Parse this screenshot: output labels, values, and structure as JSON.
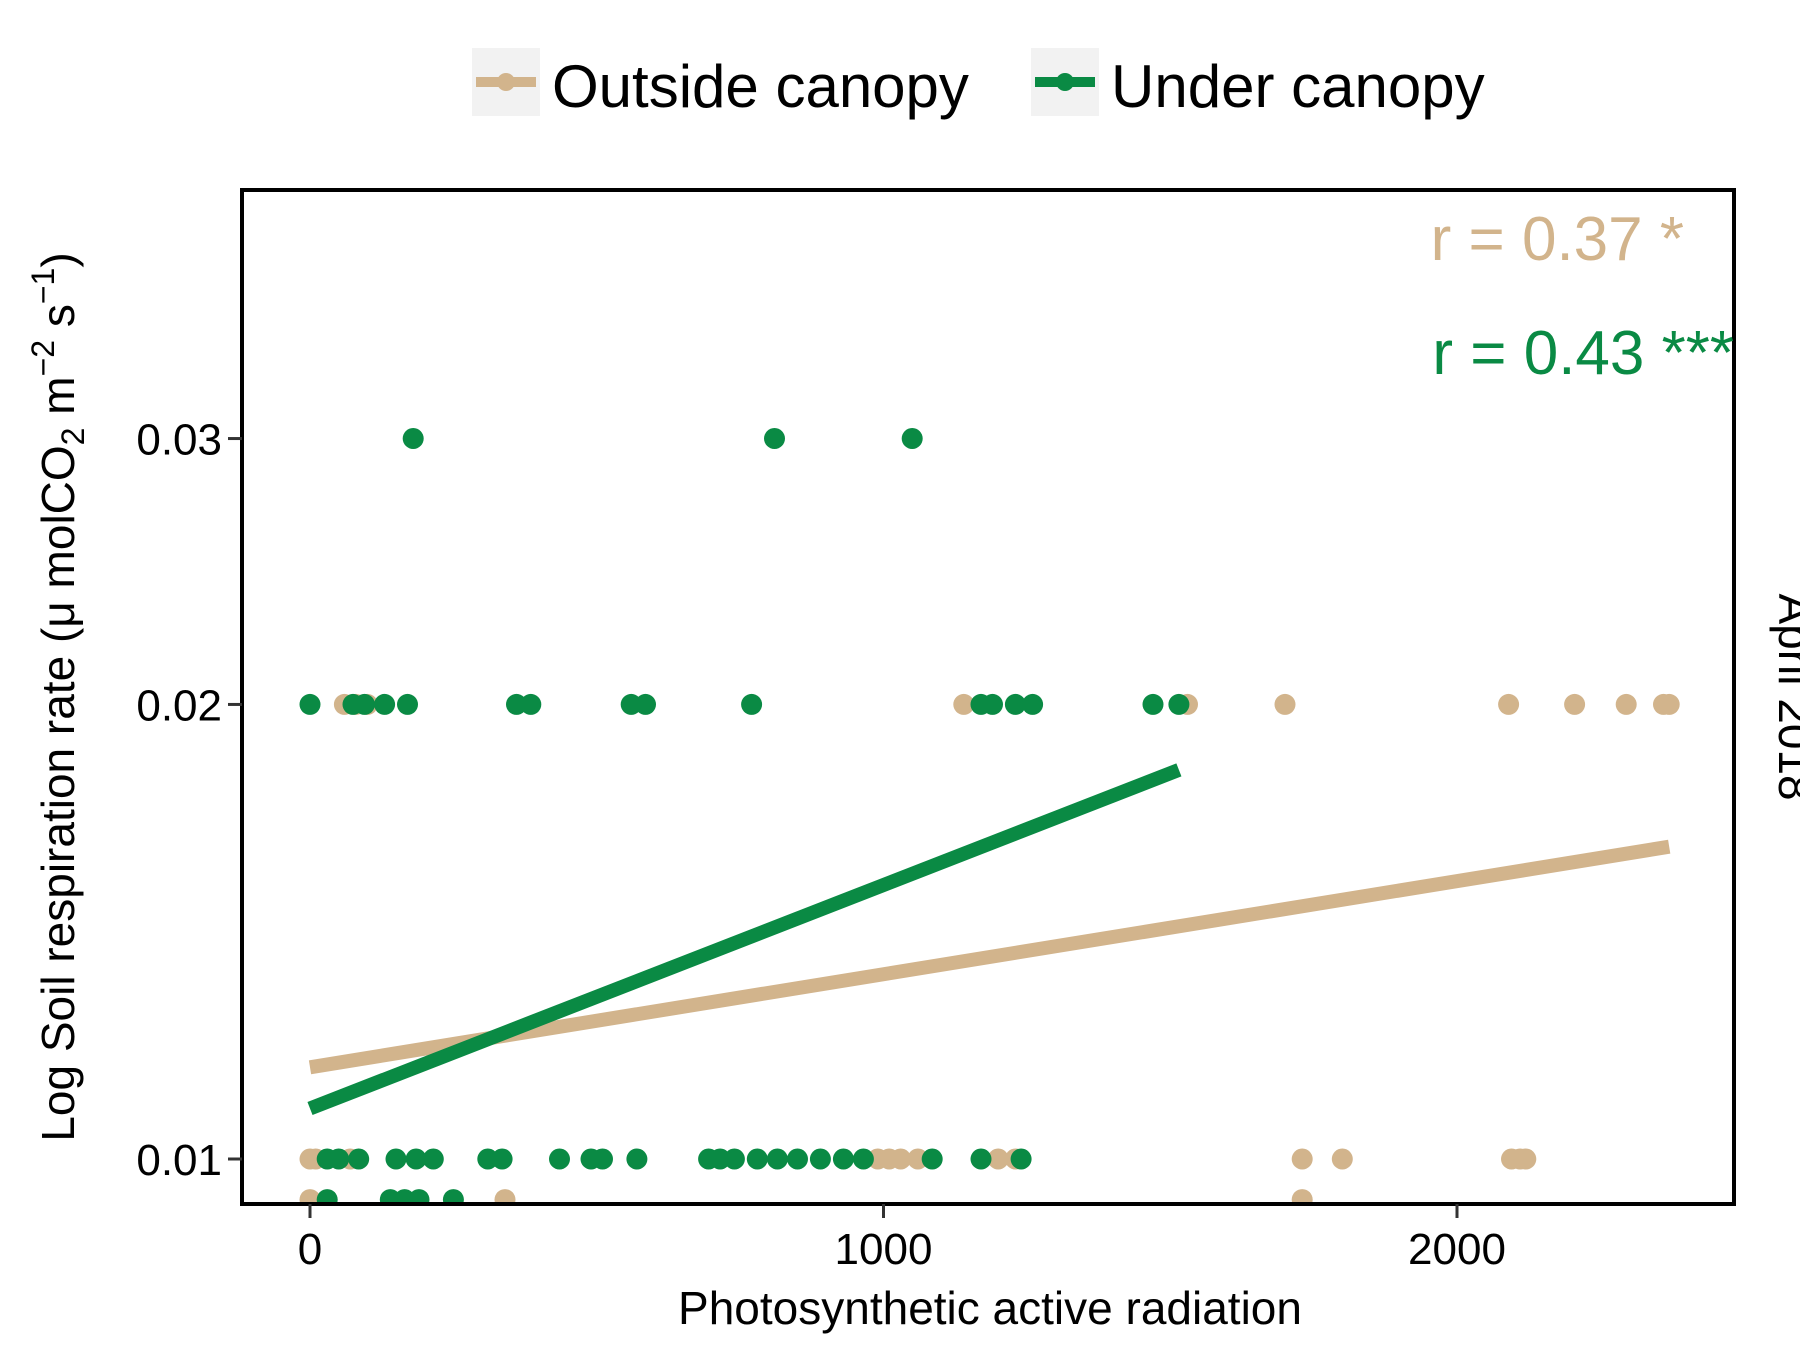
{
  "chart_data": {
    "type": "scatter",
    "title": "",
    "xlabel": "Photosynthetic active radiation",
    "ylabel": {
      "prefix": "Log Soil respiration rate  (",
      "mu": "μ",
      "mol": " molCO",
      "sub2": "2",
      "m": " m",
      "supm2": "−2",
      "s": " s",
      "supm1": "−1",
      "close": ")"
    },
    "panel_label": "April 2018",
    "y_scale": "log",
    "xlim": [
      -120,
      2500
    ],
    "ylim": [
      0.0095,
      0.035
    ],
    "x_ticks": [
      {
        "value": 0,
        "label": "0"
      },
      {
        "value": 1000,
        "label": "1000"
      },
      {
        "value": 2000,
        "label": "2000"
      }
    ],
    "y_ticks": [
      {
        "value": 0.01,
        "label": "0.01"
      },
      {
        "value": 0.02,
        "label": "0.02"
      },
      {
        "value": 0.03,
        "label": "0.03"
      }
    ],
    "grid": false,
    "legend_position": "top",
    "series": [
      {
        "name": "Outside canopy",
        "color": "#D2B48C",
        "points": [
          {
            "x": 60,
            "y": 0.02
          },
          {
            "x": 80,
            "y": 0.02
          },
          {
            "x": 100,
            "y": 0.02
          },
          {
            "x": 1140,
            "y": 0.02
          },
          {
            "x": 1530,
            "y": 0.02
          },
          {
            "x": 1700,
            "y": 0.02
          },
          {
            "x": 2090,
            "y": 0.02
          },
          {
            "x": 2205,
            "y": 0.02
          },
          {
            "x": 2295,
            "y": 0.02
          },
          {
            "x": 2360,
            "y": 0.02
          },
          {
            "x": 2370,
            "y": 0.02
          },
          {
            "x": 0,
            "y": 0.01
          },
          {
            "x": 10,
            "y": 0.01
          },
          {
            "x": 70,
            "y": 0.01
          },
          {
            "x": 990,
            "y": 0.01
          },
          {
            "x": 1010,
            "y": 0.01
          },
          {
            "x": 1030,
            "y": 0.01
          },
          {
            "x": 1060,
            "y": 0.01
          },
          {
            "x": 1200,
            "y": 0.01
          },
          {
            "x": 1230,
            "y": 0.01
          },
          {
            "x": 1730,
            "y": 0.01
          },
          {
            "x": 1800,
            "y": 0.01
          },
          {
            "x": 2095,
            "y": 0.01
          },
          {
            "x": 2110,
            "y": 0.01
          },
          {
            "x": 2120,
            "y": 0.01
          },
          {
            "x": 0,
            "y": 0.0094
          },
          {
            "x": 340,
            "y": 0.0094
          },
          {
            "x": 1730,
            "y": 0.0094
          }
        ],
        "fit": {
          "x": [
            0,
            2370
          ],
          "y": [
            0.0115,
            0.0161
          ]
        },
        "annotation": "r = 0.37 *"
      },
      {
        "name": "Under canopy",
        "color": "#0A8A44",
        "points": [
          {
            "x": 0,
            "y": 0.02
          },
          {
            "x": 75,
            "y": 0.02
          },
          {
            "x": 95,
            "y": 0.02
          },
          {
            "x": 130,
            "y": 0.02
          },
          {
            "x": 170,
            "y": 0.02
          },
          {
            "x": 360,
            "y": 0.02
          },
          {
            "x": 385,
            "y": 0.02
          },
          {
            "x": 560,
            "y": 0.02
          },
          {
            "x": 585,
            "y": 0.02
          },
          {
            "x": 770,
            "y": 0.02
          },
          {
            "x": 1170,
            "y": 0.02
          },
          {
            "x": 1190,
            "y": 0.02
          },
          {
            "x": 1230,
            "y": 0.02
          },
          {
            "x": 1260,
            "y": 0.02
          },
          {
            "x": 1470,
            "y": 0.02
          },
          {
            "x": 1515,
            "y": 0.02
          },
          {
            "x": 180,
            "y": 0.03
          },
          {
            "x": 810,
            "y": 0.03
          },
          {
            "x": 1050,
            "y": 0.03
          },
          {
            "x": 30,
            "y": 0.01
          },
          {
            "x": 50,
            "y": 0.01
          },
          {
            "x": 85,
            "y": 0.01
          },
          {
            "x": 150,
            "y": 0.01
          },
          {
            "x": 185,
            "y": 0.01
          },
          {
            "x": 215,
            "y": 0.01
          },
          {
            "x": 310,
            "y": 0.01
          },
          {
            "x": 335,
            "y": 0.01
          },
          {
            "x": 435,
            "y": 0.01
          },
          {
            "x": 490,
            "y": 0.01
          },
          {
            "x": 510,
            "y": 0.01
          },
          {
            "x": 570,
            "y": 0.01
          },
          {
            "x": 695,
            "y": 0.01
          },
          {
            "x": 715,
            "y": 0.01
          },
          {
            "x": 740,
            "y": 0.01
          },
          {
            "x": 780,
            "y": 0.01
          },
          {
            "x": 815,
            "y": 0.01
          },
          {
            "x": 850,
            "y": 0.01
          },
          {
            "x": 890,
            "y": 0.01
          },
          {
            "x": 930,
            "y": 0.01
          },
          {
            "x": 965,
            "y": 0.01
          },
          {
            "x": 1085,
            "y": 0.01
          },
          {
            "x": 1170,
            "y": 0.01
          },
          {
            "x": 1240,
            "y": 0.01
          },
          {
            "x": 30,
            "y": 0.0094
          },
          {
            "x": 140,
            "y": 0.0094
          },
          {
            "x": 165,
            "y": 0.0094
          },
          {
            "x": 190,
            "y": 0.0094
          },
          {
            "x": 250,
            "y": 0.0094
          }
        ],
        "fit": {
          "x": [
            0,
            1515
          ],
          "y": [
            0.0108,
            0.0181
          ]
        },
        "annotation": "r = 0.43 ***"
      }
    ]
  }
}
